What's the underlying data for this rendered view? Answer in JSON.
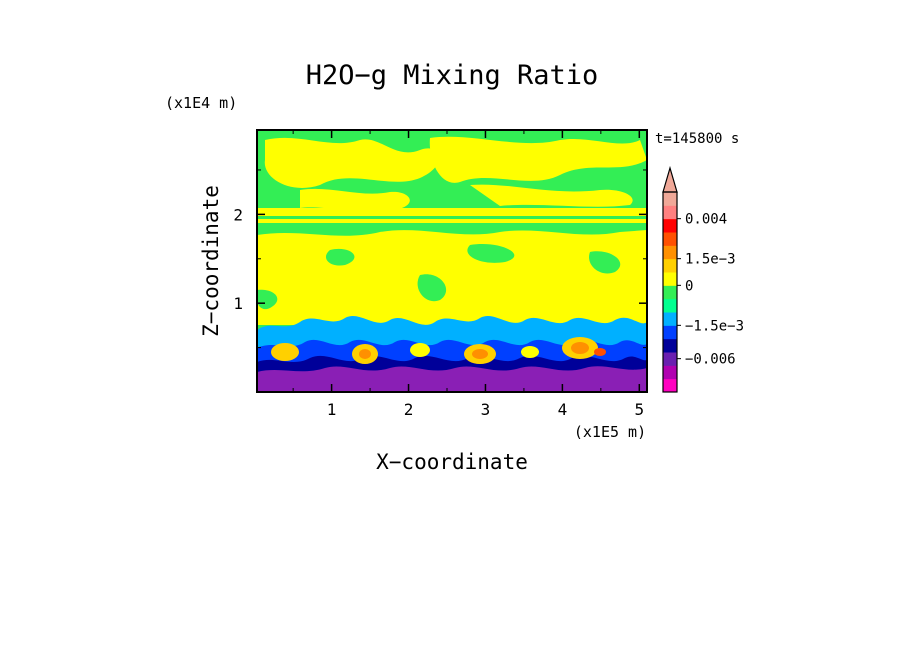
{
  "chart_data": {
    "type": "heatmap",
    "title": "H2O−g Mixing Ratio",
    "xlabel": "X−coordinate",
    "ylabel": "Z−coordinate",
    "x_scale_label": "(x1E5 m)",
    "y_scale_label": "(x1E4 m)",
    "time_label": "t=145800 s",
    "xlim": [
      0.03,
      5.1
    ],
    "ylim": [
      0.0,
      2.95
    ],
    "x_ticks": [
      1,
      2,
      3,
      4,
      5
    ],
    "y_ticks": [
      1,
      2
    ],
    "x_tick_labels": [
      "1",
      "2",
      "3",
      "4",
      "5"
    ],
    "y_tick_labels": [
      "1",
      "2"
    ],
    "colorbar": {
      "colors": [
        "#ff00c0",
        "#b000b0",
        "#6a1fb0",
        "#000099",
        "#0040ff",
        "#00b0ff",
        "#00ff90",
        "#33ee55",
        "#ffff00",
        "#ffd000",
        "#ff9000",
        "#ff5000",
        "#ff0000",
        "#ff8080",
        "#f0a898"
      ],
      "tick_labels": [
        "0.004",
        "1.5e−3",
        "0",
        "−1.5e−3",
        "−0.006"
      ]
    },
    "field_description_bands": [
      {
        "z_from": 2.4,
        "z_to": 2.95,
        "dominant": "green",
        "secondary": "yellow"
      },
      {
        "z_from": 2.0,
        "z_to": 2.1,
        "dominant": "yellow"
      },
      {
        "z_from": 1.05,
        "z_to": 1.95,
        "dominant": "yellow",
        "secondary": "green"
      },
      {
        "z_from": 0.6,
        "z_to": 1.05,
        "dominant": "cyan",
        "secondary": "blue"
      },
      {
        "z_from": 0.0,
        "z_to": 0.6,
        "dominant": "purple",
        "secondary": "orange"
      }
    ]
  }
}
